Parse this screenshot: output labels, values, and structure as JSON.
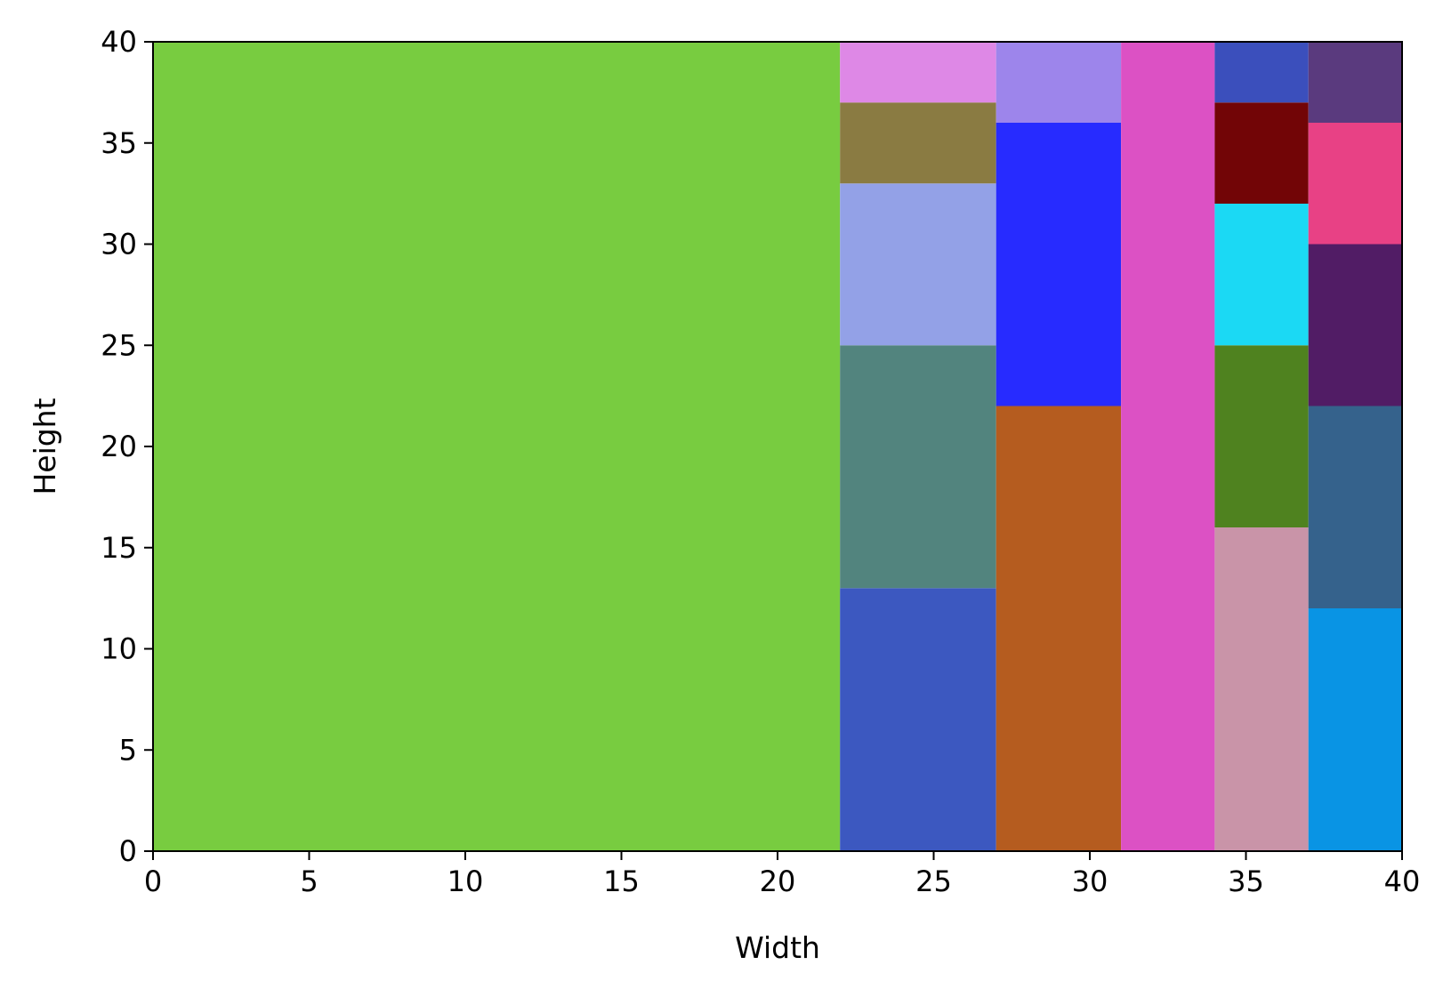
{
  "chart_data": {
    "type": "treemap",
    "title": "",
    "xlabel": "Width",
    "ylabel": "Height",
    "xlim": [
      0,
      40
    ],
    "ylim": [
      0,
      40
    ],
    "xticks": [
      0,
      5,
      10,
      15,
      20,
      25,
      30,
      35,
      40
    ],
    "yticks": [
      0,
      5,
      10,
      15,
      20,
      25,
      30,
      35,
      40
    ],
    "grid": false,
    "rects": [
      {
        "x0": 0,
        "x1": 22,
        "y0": 0,
        "y1": 40,
        "color": "#78cc40"
      },
      {
        "x0": 22,
        "x1": 27,
        "y0": 0,
        "y1": 13,
        "color": "#3c58c0"
      },
      {
        "x0": 22,
        "x1": 27,
        "y0": 13,
        "y1": 25,
        "color": "#52847e"
      },
      {
        "x0": 22,
        "x1": 27,
        "y0": 25,
        "y1": 33,
        "color": "#93a1e7"
      },
      {
        "x0": 22,
        "x1": 27,
        "y0": 33,
        "y1": 37,
        "color": "#8a7b42"
      },
      {
        "x0": 22,
        "x1": 27,
        "y0": 37,
        "y1": 40,
        "color": "#de88e6"
      },
      {
        "x0": 27,
        "x1": 31,
        "y0": 0,
        "y1": 22,
        "color": "#b55c1f"
      },
      {
        "x0": 27,
        "x1": 31,
        "y0": 22,
        "y1": 36,
        "color": "#272bff"
      },
      {
        "x0": 27,
        "x1": 31,
        "y0": 36,
        "y1": 40,
        "color": "#9d85eb"
      },
      {
        "x0": 31,
        "x1": 34,
        "y0": 0,
        "y1": 40,
        "color": "#dc51c4"
      },
      {
        "x0": 34,
        "x1": 37,
        "y0": 0,
        "y1": 16,
        "color": "#c994a8"
      },
      {
        "x0": 34,
        "x1": 37,
        "y0": 16,
        "y1": 25,
        "color": "#4f821f"
      },
      {
        "x0": 34,
        "x1": 37,
        "y0": 25,
        "y1": 32,
        "color": "#1bd9f4"
      },
      {
        "x0": 34,
        "x1": 37,
        "y0": 32,
        "y1": 37,
        "color": "#720506"
      },
      {
        "x0": 34,
        "x1": 37,
        "y0": 37,
        "y1": 40,
        "color": "#3b4fbc"
      },
      {
        "x0": 37,
        "x1": 40,
        "y0": 0,
        "y1": 12,
        "color": "#0994e4"
      },
      {
        "x0": 37,
        "x1": 40,
        "y0": 12,
        "y1": 22,
        "color": "#35628c"
      },
      {
        "x0": 37,
        "x1": 40,
        "y0": 22,
        "y1": 30,
        "color": "#511c65"
      },
      {
        "x0": 37,
        "x1": 40,
        "y0": 30,
        "y1": 36,
        "color": "#e84185"
      },
      {
        "x0": 37,
        "x1": 40,
        "y0": 36,
        "y1": 40,
        "color": "#5a3a7e"
      }
    ]
  }
}
